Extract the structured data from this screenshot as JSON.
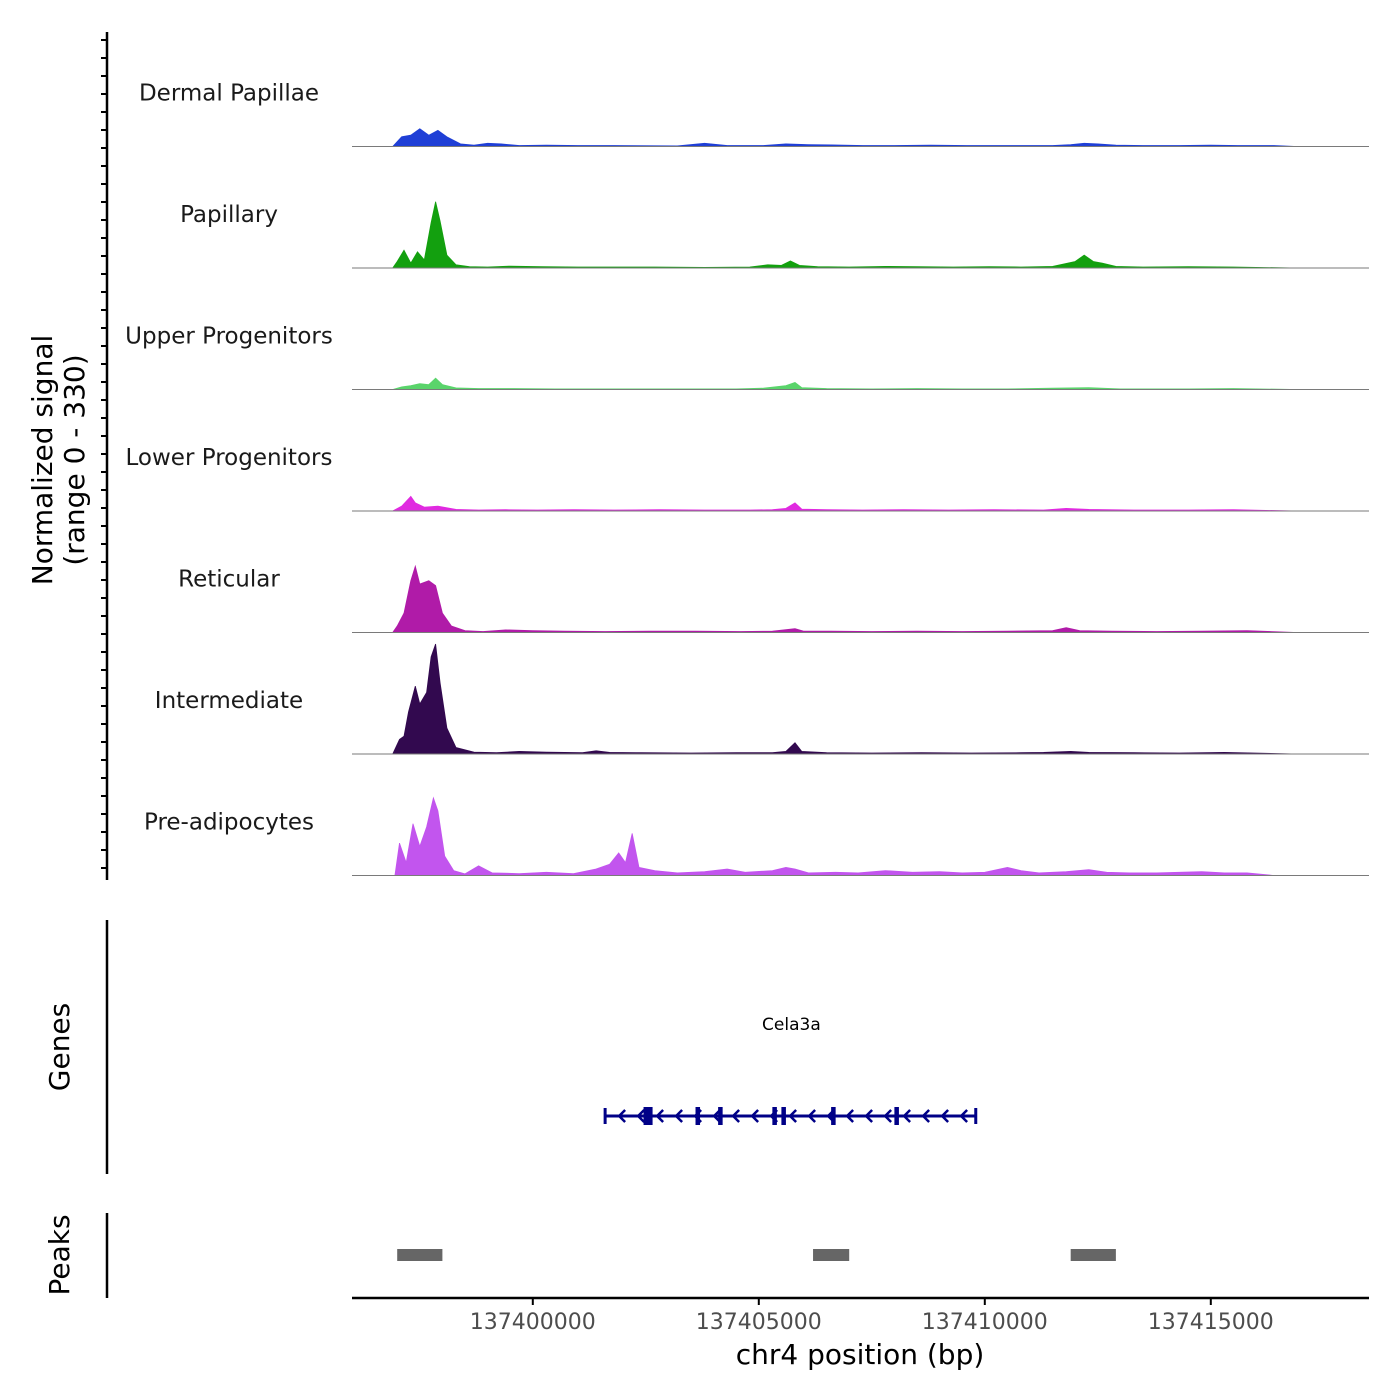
{
  "chart_data": {
    "type": "area",
    "title": "",
    "chromosome": "chr4",
    "x_range": [
      137396000,
      137418500
    ],
    "xlabel": "chr4 position (bp)",
    "x_ticks": [
      137400000,
      137405000,
      137410000,
      137415000
    ],
    "x_tick_labels": [
      "137400000",
      "137405000",
      "137410000",
      "137415000"
    ],
    "ylabel_line1": "Normalized signal",
    "ylabel_line2": "(range 0 - 330)",
    "y_range": [
      0,
      330
    ],
    "genes_title": "Genes",
    "peaks_title": "Peaks",
    "series": [
      {
        "name": "Dermal Papillae",
        "color": "#1f3fd6",
        "points": [
          [
            137396900,
            0
          ],
          [
            137397100,
            30
          ],
          [
            137397300,
            35
          ],
          [
            137397500,
            55
          ],
          [
            137397700,
            35
          ],
          [
            137397900,
            50
          ],
          [
            137398100,
            30
          ],
          [
            137398400,
            8
          ],
          [
            137398700,
            4
          ],
          [
            137399000,
            10
          ],
          [
            137399300,
            8
          ],
          [
            137399700,
            3
          ],
          [
            137400300,
            4
          ],
          [
            137401000,
            3
          ],
          [
            137401800,
            3
          ],
          [
            137403200,
            2
          ],
          [
            137403800,
            10
          ],
          [
            137404300,
            3
          ],
          [
            137405100,
            3
          ],
          [
            137405600,
            8
          ],
          [
            137406100,
            6
          ],
          [
            137406600,
            5
          ],
          [
            137407300,
            3
          ],
          [
            137408000,
            3
          ],
          [
            137408800,
            4
          ],
          [
            137409600,
            3
          ],
          [
            137410200,
            3
          ],
          [
            137410800,
            3
          ],
          [
            137411500,
            3
          ],
          [
            137411900,
            6
          ],
          [
            137412200,
            10
          ],
          [
            137412500,
            8
          ],
          [
            137412900,
            4
          ],
          [
            137413500,
            3
          ],
          [
            137414300,
            3
          ],
          [
            137415000,
            4
          ],
          [
            137415600,
            3
          ],
          [
            137416400,
            3
          ],
          [
            137416900,
            0
          ]
        ]
      },
      {
        "name": "Papillary",
        "color": "#13a00f",
        "points": [
          [
            137396900,
            0
          ],
          [
            137397000,
            20
          ],
          [
            137397150,
            55
          ],
          [
            137397300,
            15
          ],
          [
            137397450,
            50
          ],
          [
            137397600,
            25
          ],
          [
            137397750,
            140
          ],
          [
            137397850,
            205
          ],
          [
            137397950,
            145
          ],
          [
            137398100,
            40
          ],
          [
            137398300,
            10
          ],
          [
            137398600,
            4
          ],
          [
            137399000,
            3
          ],
          [
            137399500,
            6
          ],
          [
            137400200,
            4
          ],
          [
            137401000,
            3
          ],
          [
            137401800,
            3
          ],
          [
            137402700,
            3
          ],
          [
            137403800,
            2
          ],
          [
            137404800,
            3
          ],
          [
            137405200,
            10
          ],
          [
            137405500,
            8
          ],
          [
            137405700,
            22
          ],
          [
            137405900,
            8
          ],
          [
            137406300,
            4
          ],
          [
            137407000,
            3
          ],
          [
            137407800,
            5
          ],
          [
            137408500,
            4
          ],
          [
            137409300,
            3
          ],
          [
            137410100,
            4
          ],
          [
            137410800,
            3
          ],
          [
            137411500,
            5
          ],
          [
            137412000,
            20
          ],
          [
            137412200,
            40
          ],
          [
            137412400,
            20
          ],
          [
            137412600,
            15
          ],
          [
            137412900,
            5
          ],
          [
            137413500,
            3
          ],
          [
            137414500,
            4
          ],
          [
            137415500,
            3
          ],
          [
            137416900,
            0
          ]
        ]
      },
      {
        "name": "Upper Progenitors",
        "color": "#5ad46b",
        "points": [
          [
            137396900,
            0
          ],
          [
            137397100,
            8
          ],
          [
            137397300,
            12
          ],
          [
            137397500,
            18
          ],
          [
            137397700,
            15
          ],
          [
            137397850,
            35
          ],
          [
            137398000,
            15
          ],
          [
            137398300,
            5
          ],
          [
            137398800,
            3
          ],
          [
            137399600,
            3
          ],
          [
            137400500,
            2
          ],
          [
            137401500,
            2
          ],
          [
            137402500,
            2
          ],
          [
            137403500,
            2
          ],
          [
            137404500,
            2
          ],
          [
            137405100,
            4
          ],
          [
            137405600,
            12
          ],
          [
            137405800,
            22
          ],
          [
            137405950,
            6
          ],
          [
            137406500,
            3
          ],
          [
            137407500,
            2
          ],
          [
            137408500,
            3
          ],
          [
            137409500,
            2
          ],
          [
            137410500,
            2
          ],
          [
            137411500,
            4
          ],
          [
            137412300,
            6
          ],
          [
            137413000,
            2
          ],
          [
            137414500,
            2
          ],
          [
            137415500,
            3
          ],
          [
            137416900,
            0
          ]
        ]
      },
      {
        "name": "Lower Progenitors",
        "color": "#e02ae0",
        "points": [
          [
            137396900,
            0
          ],
          [
            137397100,
            15
          ],
          [
            137397300,
            45
          ],
          [
            137397400,
            25
          ],
          [
            137397600,
            12
          ],
          [
            137397900,
            15
          ],
          [
            137398300,
            5
          ],
          [
            137398800,
            3
          ],
          [
            137399400,
            4
          ],
          [
            137400100,
            3
          ],
          [
            137400900,
            4
          ],
          [
            137401800,
            3
          ],
          [
            137402800,
            4
          ],
          [
            137403800,
            3
          ],
          [
            137404800,
            3
          ],
          [
            137405300,
            4
          ],
          [
            137405600,
            8
          ],
          [
            137405800,
            25
          ],
          [
            137405950,
            6
          ],
          [
            137406500,
            4
          ],
          [
            137407300,
            3
          ],
          [
            137408200,
            4
          ],
          [
            137409200,
            3
          ],
          [
            137410200,
            4
          ],
          [
            137411300,
            3
          ],
          [
            137411800,
            8
          ],
          [
            137412300,
            5
          ],
          [
            137413300,
            3
          ],
          [
            137414500,
            3
          ],
          [
            137415500,
            4
          ],
          [
            137416900,
            0
          ]
        ]
      },
      {
        "name": "Reticular",
        "color": "#b01ba8",
        "points": [
          [
            137396900,
            0
          ],
          [
            137397000,
            20
          ],
          [
            137397150,
            60
          ],
          [
            137397300,
            160
          ],
          [
            137397400,
            205
          ],
          [
            137397500,
            150
          ],
          [
            137397700,
            160
          ],
          [
            137397850,
            145
          ],
          [
            137398000,
            60
          ],
          [
            137398200,
            20
          ],
          [
            137398500,
            6
          ],
          [
            137398900,
            3
          ],
          [
            137399400,
            8
          ],
          [
            137400000,
            6
          ],
          [
            137400700,
            4
          ],
          [
            137401600,
            3
          ],
          [
            137402600,
            4
          ],
          [
            137403600,
            4
          ],
          [
            137404600,
            3
          ],
          [
            137405300,
            4
          ],
          [
            137405800,
            12
          ],
          [
            137406000,
            4
          ],
          [
            137406600,
            4
          ],
          [
            137407500,
            3
          ],
          [
            137408500,
            4
          ],
          [
            137409500,
            3
          ],
          [
            137410500,
            4
          ],
          [
            137411500,
            6
          ],
          [
            137411800,
            15
          ],
          [
            137412100,
            6
          ],
          [
            137412800,
            4
          ],
          [
            137413800,
            3
          ],
          [
            137414800,
            4
          ],
          [
            137415800,
            6
          ],
          [
            137416900,
            0
          ]
        ]
      },
      {
        "name": "Intermediate",
        "color": "#32094f",
        "points": [
          [
            137396900,
            0
          ],
          [
            137397050,
            45
          ],
          [
            137397150,
            55
          ],
          [
            137397250,
            130
          ],
          [
            137397400,
            210
          ],
          [
            137397500,
            155
          ],
          [
            137397650,
            190
          ],
          [
            137397750,
            300
          ],
          [
            137397850,
            340
          ],
          [
            137397950,
            220
          ],
          [
            137398100,
            80
          ],
          [
            137398300,
            20
          ],
          [
            137398700,
            6
          ],
          [
            137399200,
            4
          ],
          [
            137399700,
            8
          ],
          [
            137400300,
            6
          ],
          [
            137401100,
            4
          ],
          [
            137401400,
            10
          ],
          [
            137401700,
            5
          ],
          [
            137402400,
            4
          ],
          [
            137403500,
            3
          ],
          [
            137404500,
            4
          ],
          [
            137405300,
            4
          ],
          [
            137405600,
            8
          ],
          [
            137405800,
            35
          ],
          [
            137405950,
            8
          ],
          [
            137406500,
            4
          ],
          [
            137407500,
            3
          ],
          [
            137408600,
            4
          ],
          [
            137409700,
            3
          ],
          [
            137410800,
            4
          ],
          [
            137411300,
            5
          ],
          [
            137411900,
            8
          ],
          [
            137412300,
            5
          ],
          [
            137413300,
            4
          ],
          [
            137414300,
            3
          ],
          [
            137415300,
            5
          ],
          [
            137416900,
            0
          ]
        ]
      },
      {
        "name": "Pre-adipocytes",
        "color": "#c255ee",
        "points": [
          [
            137396950,
            0
          ],
          [
            137397050,
            100
          ],
          [
            137397200,
            40
          ],
          [
            137397350,
            160
          ],
          [
            137397500,
            90
          ],
          [
            137397650,
            150
          ],
          [
            137397800,
            240
          ],
          [
            137397900,
            200
          ],
          [
            137398050,
            60
          ],
          [
            137398250,
            15
          ],
          [
            137398500,
            5
          ],
          [
            137398800,
            30
          ],
          [
            137399100,
            8
          ],
          [
            137399700,
            6
          ],
          [
            137400300,
            10
          ],
          [
            137400900,
            6
          ],
          [
            137401400,
            20
          ],
          [
            137401700,
            35
          ],
          [
            137401900,
            70
          ],
          [
            137402050,
            40
          ],
          [
            137402200,
            130
          ],
          [
            137402350,
            25
          ],
          [
            137402700,
            15
          ],
          [
            137403200,
            8
          ],
          [
            137403800,
            12
          ],
          [
            137404300,
            20
          ],
          [
            137404700,
            10
          ],
          [
            137405300,
            15
          ],
          [
            137405600,
            25
          ],
          [
            137405800,
            20
          ],
          [
            137406100,
            8
          ],
          [
            137406700,
            10
          ],
          [
            137407200,
            8
          ],
          [
            137407800,
            15
          ],
          [
            137408400,
            10
          ],
          [
            137409000,
            12
          ],
          [
            137409500,
            8
          ],
          [
            137410000,
            10
          ],
          [
            137410500,
            25
          ],
          [
            137410800,
            15
          ],
          [
            137411200,
            8
          ],
          [
            137411800,
            12
          ],
          [
            137412300,
            18
          ],
          [
            137412700,
            10
          ],
          [
            137413200,
            8
          ],
          [
            137413800,
            8
          ],
          [
            137414300,
            10
          ],
          [
            137414800,
            12
          ],
          [
            137415300,
            8
          ],
          [
            137415800,
            8
          ],
          [
            137416400,
            0
          ]
        ]
      }
    ],
    "gene": {
      "name": "Cela3a",
      "start": 137401600,
      "end": 137409800,
      "strand": "-",
      "exons": [
        [
          137402450,
          137402650
        ],
        [
          137403600,
          137403700
        ],
        [
          137404100,
          137404200
        ],
        [
          137405300,
          137405400
        ],
        [
          137405500,
          137405600
        ],
        [
          137406600,
          137406700
        ],
        [
          137408000,
          137408100
        ]
      ],
      "color": "#000087"
    },
    "peaks": [
      {
        "start": 137397000,
        "end": 137398000
      },
      {
        "start": 137406200,
        "end": 137407000
      },
      {
        "start": 137411900,
        "end": 137412900
      }
    ]
  }
}
